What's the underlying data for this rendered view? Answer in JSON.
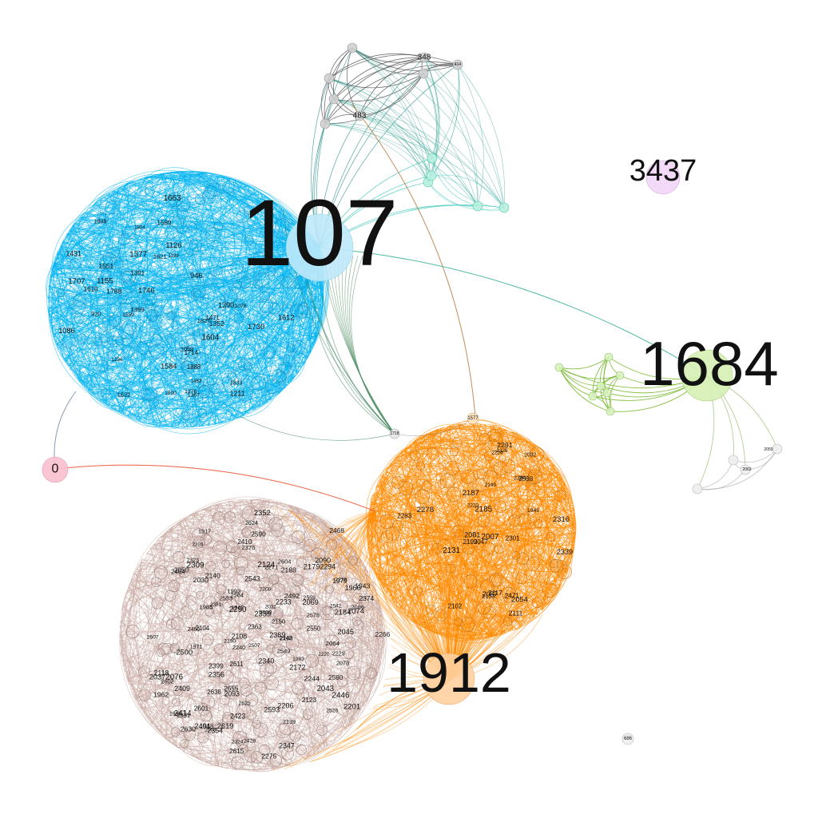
{
  "colors": {
    "blue": "#00b4f0",
    "orange": "#ff8a00",
    "mauve": "#c8a9a3",
    "green": "#7cc41e",
    "gray": "#555555",
    "teal": "#22b5a2",
    "pink": "#f7a1b6",
    "violet": "#e7b8f0",
    "brown": "#b07030",
    "lightgray": "#cfcfcf"
  },
  "hubs": [
    {
      "id": "107",
      "label": "107",
      "cluster": "blue"
    },
    {
      "id": "1684",
      "label": "1684",
      "cluster": "green"
    },
    {
      "id": "1912",
      "label": "1912",
      "cluster": "orange"
    },
    {
      "id": "3437",
      "label": "3437",
      "cluster": "violet"
    },
    {
      "id": "0",
      "label": "0",
      "cluster": "pink"
    },
    {
      "id": "686",
      "label": "686",
      "cluster": "lightgray"
    },
    {
      "id": "348",
      "label": "348",
      "cluster": "gray"
    },
    {
      "id": "483",
      "label": "483",
      "cluster": "gray"
    },
    {
      "id": "414",
      "label": "414",
      "cluster": "gray"
    },
    {
      "id": "1577",
      "label": "1577",
      "cluster": "orange"
    },
    {
      "id": "1718",
      "label": "1718",
      "cluster": "blue"
    }
  ],
  "nodes": {
    "blue": [
      "1663",
      "1888",
      "1804",
      "1551",
      "1086",
      "1078",
      "1199",
      "1391",
      "1788",
      "1584",
      "1559",
      "1707",
      "1610",
      "1471",
      "1399",
      "1377",
      "1431",
      "1126",
      "1211",
      "1714",
      "1352",
      "1800",
      "1390",
      "1746",
      "1833",
      "1730",
      "1589",
      "1621",
      "1622",
      "1827",
      "1612",
      "1367",
      "1376",
      "1059",
      "1839",
      "946",
      "920",
      "1236",
      "1604",
      "1453",
      "1155"
    ],
    "orange": [
      "2111",
      "2054",
      "2283",
      "2081",
      "2199",
      "2384",
      "2007",
      "2328",
      "2598",
      "2471",
      "2032",
      "2224",
      "2187",
      "2339",
      "2102",
      "2149",
      "2047",
      "2220",
      "2117",
      "2291",
      "2301",
      "2278",
      "2131",
      "2087",
      "2153",
      "2185",
      "1945",
      "2316"
    ],
    "mauve": [
      "2354",
      "2560",
      "2492",
      "1979",
      "2233",
      "2347",
      "2543",
      "1985",
      "2446",
      "2240",
      "2409",
      "2064",
      "2549",
      "2399",
      "2244",
      "2124",
      "1946",
      "2076",
      "1971",
      "2564",
      "2139",
      "2381",
      "2428",
      "2593",
      "2423",
      "2172",
      "2229",
      "2363",
      "2655",
      "2103",
      "2206",
      "2271",
      "2309",
      "2108",
      "2030",
      "2090",
      "2086",
      "2050",
      "2220",
      "2468",
      "1993",
      "2507",
      "2601",
      "2045",
      "2123",
      "2638",
      "2118",
      "2326",
      "1962",
      "2179",
      "2037",
      "2278",
      "2356",
      "2602",
      "2043",
      "2200",
      "2150",
      "2550",
      "2324",
      "2323",
      "2410",
      "2611",
      "2266",
      "2404",
      "2078",
      "2074",
      "2500",
      "1938",
      "2553",
      "2414",
      "2340",
      "1918",
      "2615",
      "2526",
      "2184",
      "2604",
      "2590",
      "2339",
      "2188",
      "2142",
      "2190",
      "2578",
      "2625",
      "2580",
      "2607",
      "2275",
      "2331",
      "2069",
      "2294",
      "2032",
      "2369",
      "2624",
      "2542",
      "2619",
      "2104",
      "1943",
      "2093",
      "2201",
      "2630",
      "2290",
      "1917",
      "2559",
      "2464",
      "1983",
      "2376",
      "2140",
      "2460",
      "2374",
      "2600",
      "2352",
      "1966"
    ],
    "green": [],
    "gray": [
      "348",
      "483",
      "414"
    ],
    "ring": [
      "2059",
      "2063"
    ]
  }
}
